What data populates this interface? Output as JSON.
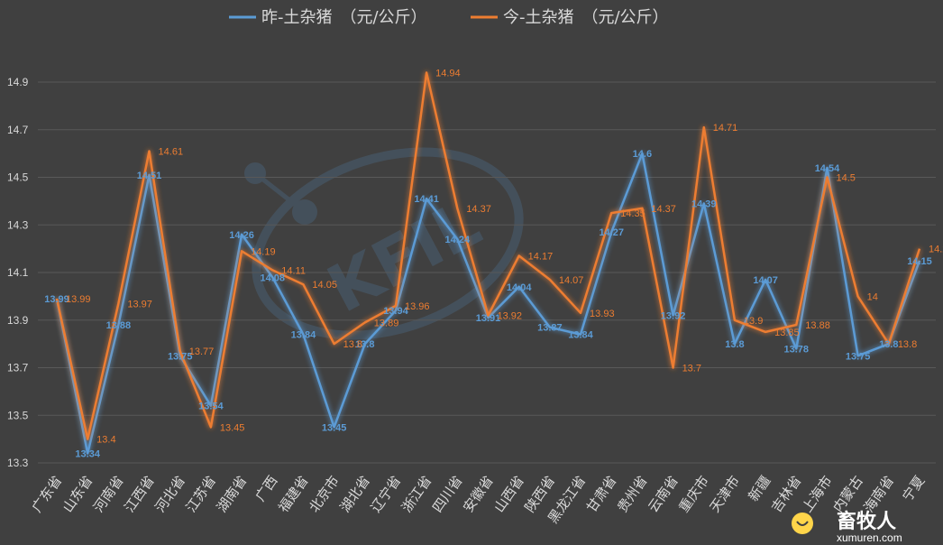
{
  "chart_data": {
    "type": "line",
    "categories": [
      "广东省",
      "山东省",
      "河南省",
      "江西省",
      "河北省",
      "江苏省",
      "湖南省",
      "广西",
      "福建省",
      "北京市",
      "湖北省",
      "辽宁省",
      "浙江省",
      "四川省",
      "安徽省",
      "山西省",
      "陕西省",
      "黑龙江省",
      "甘肃省",
      "贵州省",
      "云南省",
      "重庆市",
      "天津市",
      "新疆",
      "吉林省",
      "上海市",
      "内蒙古",
      "海南省",
      "宁夏"
    ],
    "series": [
      {
        "name": "昨-土杂猪　（元/公斤）",
        "color": "#5b9bd5",
        "values": [
          13.99,
          13.34,
          13.88,
          14.51,
          13.75,
          13.54,
          14.26,
          14.08,
          13.84,
          13.45,
          13.8,
          13.94,
          14.41,
          14.24,
          13.91,
          14.04,
          13.87,
          13.84,
          14.27,
          14.6,
          13.92,
          14.39,
          13.8,
          14.07,
          13.78,
          14.54,
          13.75,
          13.8,
          14.15
        ],
        "labels": [
          "13.99",
          "13.34",
          "13.88",
          "14.51",
          "13.75",
          "13.54",
          "14.26",
          "14.08",
          "13.84",
          "13.45",
          "13.8",
          "13.94",
          "14.41",
          "14.24",
          "13.91",
          "14.04",
          "13.87",
          "13.84",
          "14.27",
          "14.6",
          "13.92",
          "14.39",
          "13.8",
          "14.07",
          "13.78",
          "14.54",
          "13.75",
          "13.8",
          "14.15"
        ]
      },
      {
        "name": "今-土杂猪　（元/公斤）",
        "color": "#ed7d31",
        "values": [
          13.99,
          13.4,
          13.97,
          14.61,
          13.77,
          13.45,
          14.19,
          14.11,
          14.05,
          13.8,
          13.89,
          13.96,
          14.94,
          14.37,
          13.92,
          14.17,
          14.07,
          13.93,
          14.35,
          14.37,
          13.7,
          14.71,
          13.9,
          13.85,
          13.88,
          14.5,
          14.0,
          13.8,
          14.2
        ],
        "labels": [
          "13.99",
          "13.4",
          "13.97",
          "14.61",
          "13.77",
          "13.45",
          "14.19",
          "14.11",
          "14.05",
          "13.8",
          "13.89",
          "13.96",
          "14.94",
          "14.37",
          "13.92",
          "14.17",
          "14.07",
          "13.93",
          "14.35",
          "14.37",
          "13.7",
          "14.71",
          "13.9",
          "13.85",
          "13.88",
          "14.5",
          "14",
          "13.8",
          "14.2"
        ]
      }
    ],
    "yticks": [
      "13.3",
      "13.5",
      "13.7",
      "13.9",
      "14.1",
      "14.3",
      "14.5",
      "14.7",
      "14.9"
    ],
    "ylim": [
      13.3,
      15.0
    ],
    "grid": true,
    "legend": "top-center",
    "title": "",
    "xlabel": "",
    "ylabel": ""
  },
  "watermark": {
    "brand": "畜牧人",
    "url": "xumuren.com",
    "logo_text": "KFIL"
  }
}
